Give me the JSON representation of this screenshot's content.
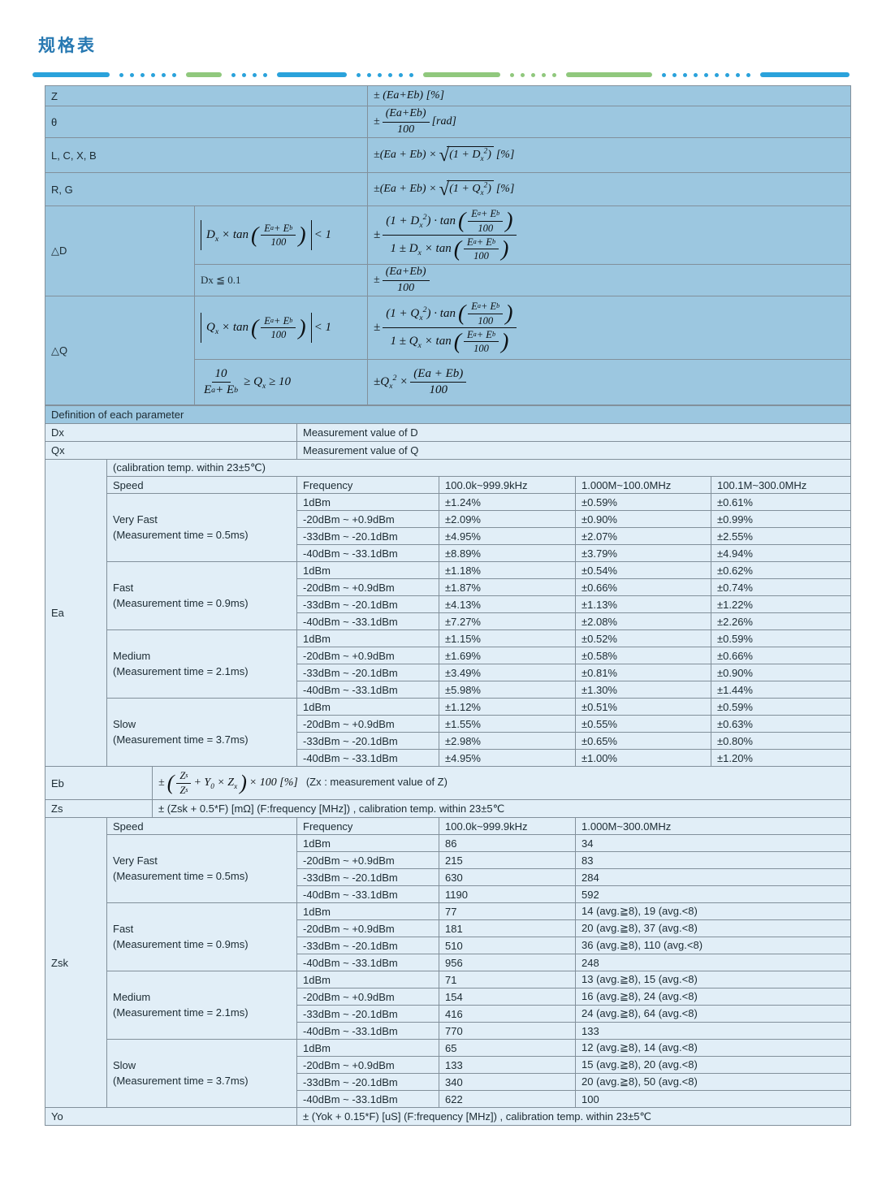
{
  "page": {
    "title": "规格表"
  },
  "sym": {
    "pm": "±",
    "lp": "(",
    "rp": ")"
  },
  "shared": {
    "eab": "E_{a} + E_{b}",
    "h100": "100"
  },
  "top": {
    "z": {
      "param": "Z",
      "expr": "± (Ea+Eb) [%]"
    },
    "theta": {
      "param": "θ",
      "num": "(Ea+Eb)",
      "den": "100",
      "unit": "[rad]"
    },
    "lcxb": {
      "param": "L, C, X, B",
      "pre": "±(Ea + Eb) ×",
      "rad": "(1 + D_{x}^{2})",
      "unit": "[%]"
    },
    "rg": {
      "param": "R, G",
      "pre": "±(Ea + Eb) ×",
      "rad": "(1 + Q_{x}^{2})",
      "unit": "[%]"
    },
    "dd": {
      "param": "△D",
      "cond1": {
        "pre": "D_{x} × tan",
        "post": "< 1"
      },
      "res1": {
        "ntext": "(1 + D_{x}^{2}) · tan",
        "dtext": "1 ± D_{x} × tan"
      },
      "cond2": "Dx ≦ 0.1",
      "res2": {
        "num": "(Ea+Eb)",
        "den": "100"
      }
    },
    "dq": {
      "param": "△Q",
      "cond1": {
        "pre": "Q_{x} × tan",
        "post": "< 1"
      },
      "res1": {
        "ntext": "(1 + Q_{x}^{2}) · tan",
        "dtext": "1 ± Q_{x} × tan"
      },
      "cond2": {
        "num": "10",
        "den": "E_{a} + E_{b}",
        "post": "≥ Q_{x} ≥ 10"
      },
      "res2": {
        "pre": "±Q_{x}^{2} ×",
        "num": "(Ea + Eb)",
        "den": "100"
      }
    }
  },
  "def": {
    "header": "Definition of each parameter",
    "dx": {
      "label": "Dx",
      "value": "Measurement value of D"
    },
    "qx": {
      "label": "Qx",
      "value": "Measurement value of Q"
    }
  },
  "ea": {
    "label": "Ea",
    "calib": "(calibration temp. within 23±5℃)",
    "headers": {
      "speed": "Speed",
      "frequency": "Frequency",
      "f1": "100.0k~999.9kHz",
      "f2": "1.000M~100.0MHz",
      "f3": "100.1M~300.0MHz"
    },
    "levels": [
      "1dBm",
      "-20dBm ~ +0.9dBm",
      "-33dBm ~ -20.1dBm",
      "-40dBm ~ -33.1dBm"
    ],
    "groups": [
      {
        "name": "Very Fast",
        "time": "(Measurement time = 0.5ms)",
        "rows": [
          [
            "±1.24%",
            "±0.59%",
            "±0.61%"
          ],
          [
            "±2.09%",
            "±0.90%",
            "±0.99%"
          ],
          [
            "±4.95%",
            "±2.07%",
            "±2.55%"
          ],
          [
            "±8.89%",
            "±3.79%",
            "±4.94%"
          ]
        ]
      },
      {
        "name": "Fast",
        "time": "(Measurement time = 0.9ms)",
        "rows": [
          [
            "±1.18%",
            "±0.54%",
            "±0.62%"
          ],
          [
            "±1.87%",
            "±0.66%",
            "±0.74%"
          ],
          [
            "±4.13%",
            "±1.13%",
            "±1.22%"
          ],
          [
            "±7.27%",
            "±2.08%",
            "±2.26%"
          ]
        ]
      },
      {
        "name": "Medium",
        "time": "(Measurement time = 2.1ms)",
        "rows": [
          [
            "±1.15%",
            "±0.52%",
            "±0.59%"
          ],
          [
            "±1.69%",
            "±0.58%",
            "±0.66%"
          ],
          [
            "±3.49%",
            "±0.81%",
            "±0.90%"
          ],
          [
            "±5.98%",
            "±1.30%",
            "±1.44%"
          ]
        ]
      },
      {
        "name": "Slow",
        "time": "(Measurement time = 3.7ms)",
        "rows": [
          [
            "±1.12%",
            "±0.51%",
            "±0.59%"
          ],
          [
            "±1.55%",
            "±0.55%",
            "±0.63%"
          ],
          [
            "±2.98%",
            "±0.65%",
            "±0.80%"
          ],
          [
            "±4.95%",
            "±1.00%",
            "±1.20%"
          ]
        ]
      }
    ]
  },
  "eb": {
    "label": "Eb",
    "num": "Z_{s}",
    "den": "Z_{s}",
    "mid": "+ Y_{0} × Z_{x}",
    "post": "× 100 [%]",
    "note": "(Zx : measurement value of Z)"
  },
  "zs": {
    "label": "Zs",
    "text": "± (Zsk + 0.5*F) [mΩ] (F:frequency [MHz]) , calibration temp. within 23±5℃"
  },
  "zsk": {
    "label": "Zsk",
    "headers": {
      "speed": "Speed",
      "frequency": "Frequency",
      "f1": "100.0k~999.9kHz",
      "f2": "1.000M~300.0MHz"
    },
    "levels": [
      "1dBm",
      "-20dBm ~ +0.9dBm",
      "-33dBm ~ -20.1dBm",
      "-40dBm ~ -33.1dBm"
    ],
    "groups": [
      {
        "name": "Very Fast",
        "time": "(Measurement time = 0.5ms)",
        "rows": [
          [
            "86",
            "34"
          ],
          [
            "215",
            "83"
          ],
          [
            "630",
            "284"
          ],
          [
            "1190",
            "592"
          ]
        ]
      },
      {
        "name": "Fast",
        "time": "(Measurement time = 0.9ms)",
        "rows": [
          [
            "77",
            "14 (avg.≧8),  19 (avg.<8)"
          ],
          [
            "181",
            "20 (avg.≧8),  37 (avg.<8)"
          ],
          [
            "510",
            "36 (avg.≧8), 110 (avg.<8)"
          ],
          [
            "956",
            "248"
          ]
        ]
      },
      {
        "name": "Medium",
        "time": "(Measurement time = 2.1ms)",
        "rows": [
          [
            "71",
            "13 (avg.≧8), 15 (avg.<8)"
          ],
          [
            "154",
            "16 (avg.≧8), 24 (avg.<8)"
          ],
          [
            "416",
            "24 (avg.≧8), 64 (avg.<8)"
          ],
          [
            "770",
            "133"
          ]
        ]
      },
      {
        "name": "Slow",
        "time": "(Measurement time = 3.7ms)",
        "rows": [
          [
            "65",
            "12 (avg.≧8), 14 (avg.<8)"
          ],
          [
            "133",
            "15 (avg.≧8), 20 (avg.<8)"
          ],
          [
            "340",
            "20 (avg.≧8), 50 (avg.<8)"
          ],
          [
            "622",
            "100"
          ]
        ]
      }
    ]
  },
  "yo": {
    "label": "Yo",
    "text": "± (Yok + 0.15*F) [uS] (F:frequency [MHz]) , calibration temp. within 23±5℃"
  }
}
